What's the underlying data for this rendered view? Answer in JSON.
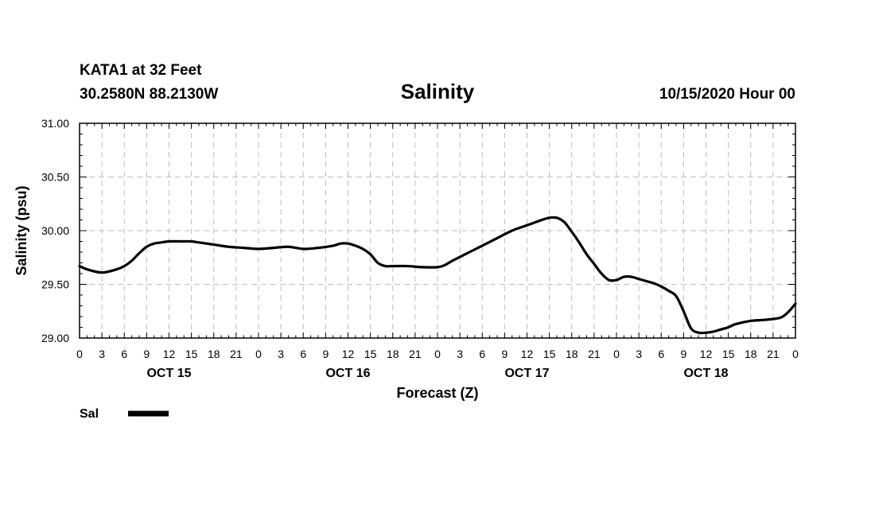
{
  "header": {
    "station": "KATA1 at 32 Feet",
    "location": "30.2580N 88.2130W",
    "title": "Salinity",
    "timestamp": "10/15/2020 Hour 00"
  },
  "chart_data": {
    "type": "line",
    "title": "Salinity",
    "xlabel": "Forecast (Z)",
    "ylabel": "Salinity (psu)",
    "xlim": [
      0,
      96
    ],
    "ylim": [
      29.0,
      31.0
    ],
    "grid": true,
    "y_ticks": [
      "29.00",
      "29.50",
      "30.00",
      "30.50",
      "31.00"
    ],
    "x_tick_labels": [
      "0",
      "3",
      "6",
      "9",
      "12",
      "15",
      "18",
      "21",
      "0",
      "3",
      "6",
      "9",
      "12",
      "15",
      "18",
      "21",
      "0",
      "3",
      "6",
      "9",
      "12",
      "15",
      "18",
      "21",
      "0",
      "3",
      "6",
      "9",
      "12",
      "15",
      "18",
      "21",
      "0"
    ],
    "date_labels": [
      {
        "hour": 12,
        "label": "OCT 15"
      },
      {
        "hour": 36,
        "label": "OCT 16"
      },
      {
        "hour": 60,
        "label": "OCT 17"
      },
      {
        "hour": 84,
        "label": "OCT 18"
      }
    ],
    "legend": {
      "label": "Sal",
      "position": "bottom-left"
    },
    "series": [
      {
        "name": "Sal",
        "color": "#000000",
        "x": [
          0,
          1,
          3,
          5,
          6,
          7,
          8,
          9,
          10,
          11,
          12,
          14,
          15,
          16,
          18,
          20,
          22,
          24,
          26,
          28,
          30,
          32,
          34,
          35,
          36,
          37,
          38,
          39,
          40,
          41,
          42,
          44,
          46,
          48,
          49,
          50,
          52,
          54,
          56,
          58,
          60,
          62,
          63,
          64,
          65,
          66,
          67,
          68,
          69,
          70,
          71,
          72,
          73,
          74,
          75,
          76,
          77,
          78,
          79,
          80,
          81,
          82,
          83,
          84,
          85,
          86,
          87,
          88,
          90,
          92,
          94,
          95,
          96
        ],
        "values": [
          29.67,
          29.64,
          29.61,
          29.64,
          29.67,
          29.72,
          29.79,
          29.85,
          29.88,
          29.89,
          29.9,
          29.9,
          29.9,
          29.89,
          29.87,
          29.85,
          29.84,
          29.83,
          29.84,
          29.85,
          29.83,
          29.84,
          29.86,
          29.88,
          29.88,
          29.86,
          29.83,
          29.78,
          29.7,
          29.67,
          29.67,
          29.67,
          29.66,
          29.66,
          29.68,
          29.72,
          29.79,
          29.86,
          29.93,
          30.0,
          30.05,
          30.1,
          30.12,
          30.12,
          30.08,
          29.99,
          29.89,
          29.78,
          29.69,
          29.6,
          29.54,
          29.54,
          29.57,
          29.57,
          29.55,
          29.53,
          29.51,
          29.48,
          29.44,
          29.39,
          29.25,
          29.09,
          29.05,
          29.05,
          29.06,
          29.08,
          29.1,
          29.13,
          29.16,
          29.17,
          29.19,
          29.24,
          29.32
        ]
      }
    ]
  }
}
